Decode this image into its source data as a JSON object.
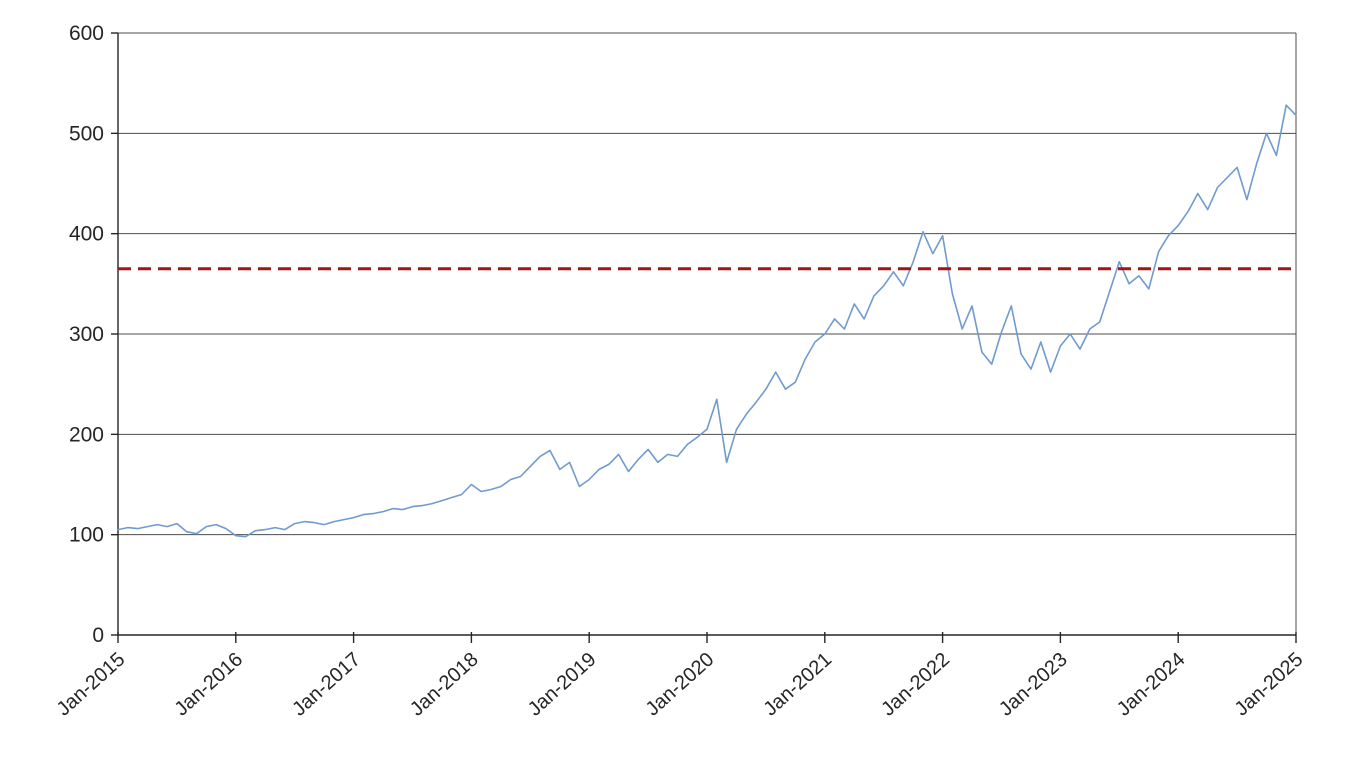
{
  "chart_data": {
    "type": "line",
    "title": "",
    "xlabel": "",
    "ylabel": "",
    "ylim": [
      0,
      600
    ],
    "y_ticks": [
      0,
      100,
      200,
      300,
      400,
      500,
      600
    ],
    "x_tick_labels": [
      "Jan-2015",
      "Jan-2016",
      "Jan-2017",
      "Jan-2018",
      "Jan-2019",
      "Jan-2020",
      "Jan-2021",
      "Jan-2022",
      "Jan-2023",
      "Jan-2024",
      "Jan-2025"
    ],
    "grid": "horizontal",
    "legend_position": "none",
    "plot_border": true,
    "colors": {
      "line": "#6f9bcf",
      "reference": "#a01616",
      "gridline": "#4d4d4d",
      "axis": "#262626",
      "text": "#262626",
      "background": "#ffffff"
    },
    "series": [
      {
        "name": "index-line",
        "color": "#6f9bcf",
        "start": "Jan-2015",
        "frequency": "monthly",
        "values": [
          105,
          107,
          106,
          108,
          110,
          108,
          111,
          103,
          101,
          108,
          110,
          106,
          99,
          98,
          104,
          105,
          107,
          105,
          111,
          113,
          112,
          110,
          113,
          115,
          117,
          120,
          121,
          123,
          126,
          125,
          128,
          129,
          131,
          134,
          137,
          140,
          150,
          143,
          145,
          148,
          155,
          158,
          168,
          178,
          184,
          165,
          172,
          148,
          155,
          165,
          170,
          180,
          163,
          175,
          185,
          172,
          180,
          178,
          190,
          197,
          205,
          235,
          172,
          205,
          220,
          232,
          245,
          262,
          245,
          252,
          275,
          292,
          300,
          315,
          305,
          330,
          315,
          338,
          348,
          362,
          348,
          372,
          402,
          380,
          398,
          340,
          305,
          328,
          282,
          270,
          302,
          328,
          280,
          265,
          292,
          262,
          288,
          300,
          285,
          305,
          312,
          342,
          372,
          350,
          358,
          345,
          382,
          398,
          408,
          422,
          440,
          424,
          446,
          456,
          466,
          434,
          470,
          500,
          478,
          528,
          518
        ]
      },
      {
        "name": "reference-line",
        "color": "#a01616",
        "style": "dashed",
        "value": 365
      }
    ]
  }
}
